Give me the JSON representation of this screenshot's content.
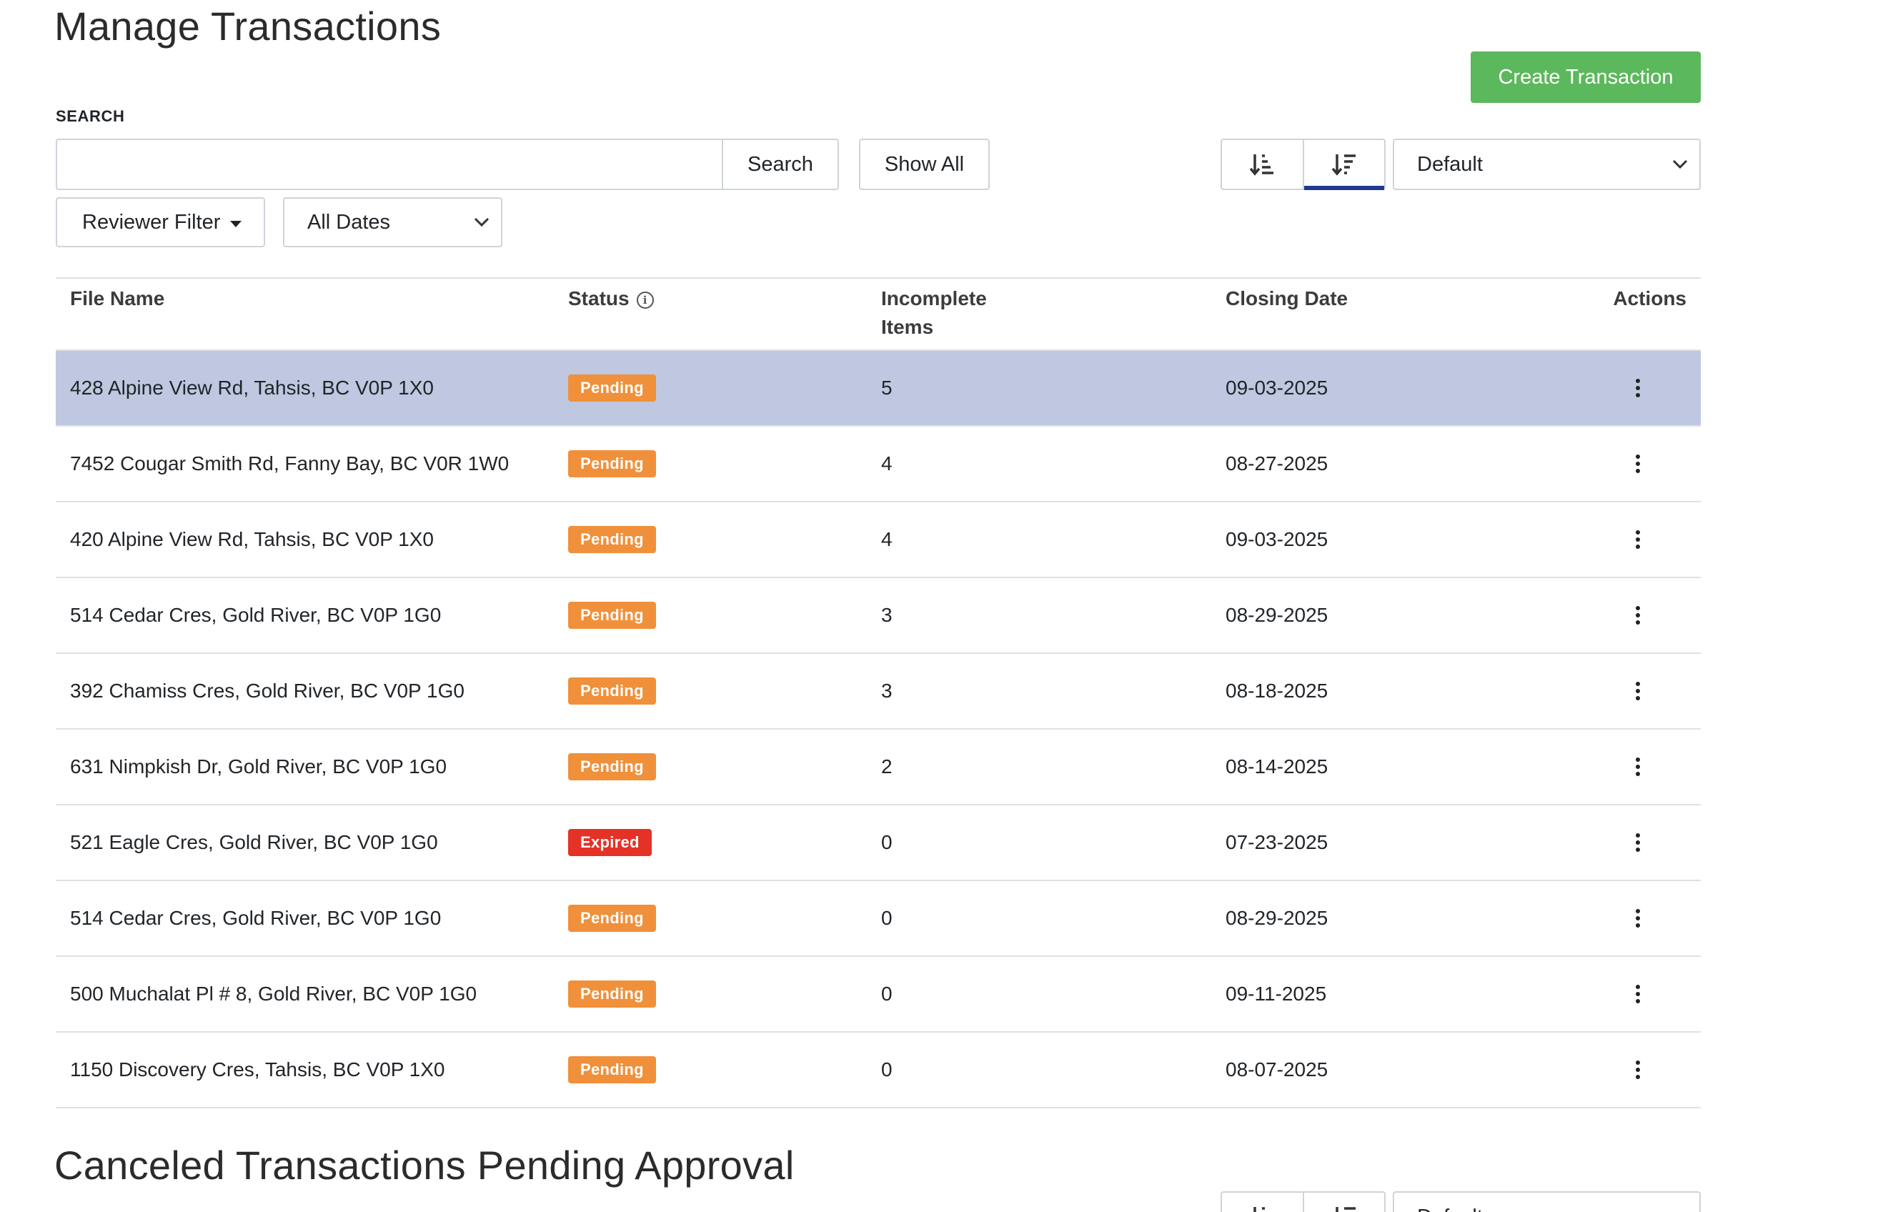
{
  "header": {
    "title": "Manage Transactions",
    "create_button": "Create Transaction"
  },
  "search": {
    "label": "SEARCH",
    "value": "",
    "placeholder": "",
    "search_button": "Search",
    "show_all_button": "Show All"
  },
  "sort": {
    "ascending_icon": "sort-ascending-icon",
    "descending_icon": "sort-descending-icon",
    "active": "descending",
    "select_value": "Default"
  },
  "filters": {
    "reviewer_filter": "Reviewer Filter",
    "dates_select": "All Dates"
  },
  "table": {
    "columns": {
      "file_name": "File Name",
      "status": "Status",
      "incomplete_line1": "Incomplete",
      "incomplete_line2": "Items",
      "closing_date": "Closing Date",
      "actions": "Actions"
    },
    "rows": [
      {
        "file": "428 Alpine View Rd, Tahsis, BC V0P 1X0",
        "status": "Pending",
        "items": "5",
        "date": "09-03-2025",
        "selected": true
      },
      {
        "file": "7452 Cougar Smith Rd, Fanny Bay, BC V0R 1W0",
        "status": "Pending",
        "items": "4",
        "date": "08-27-2025"
      },
      {
        "file": "420 Alpine View Rd, Tahsis, BC V0P 1X0",
        "status": "Pending",
        "items": "4",
        "date": "09-03-2025"
      },
      {
        "file": "514 Cedar Cres, Gold River, BC V0P 1G0",
        "status": "Pending",
        "items": "3",
        "date": "08-29-2025"
      },
      {
        "file": "392 Chamiss Cres, Gold River, BC V0P 1G0",
        "status": "Pending",
        "items": "3",
        "date": "08-18-2025"
      },
      {
        "file": "631 Nimpkish Dr, Gold River, BC V0P 1G0",
        "status": "Pending",
        "items": "2",
        "date": "08-14-2025"
      },
      {
        "file": "521 Eagle Cres, Gold River, BC V0P 1G0",
        "status": "Expired",
        "items": "0",
        "date": "07-23-2025"
      },
      {
        "file": "514 Cedar Cres, Gold River, BC V0P 1G0",
        "status": "Pending",
        "items": "0",
        "date": "08-29-2025"
      },
      {
        "file": "500 Muchalat Pl # 8, Gold River, BC V0P 1G0",
        "status": "Pending",
        "items": "0",
        "date": "09-11-2025"
      },
      {
        "file": "1150 Discovery Cres, Tahsis, BC V0P 1X0",
        "status": "Pending",
        "items": "0",
        "date": "08-07-2025"
      }
    ]
  },
  "canceled_section": {
    "title": "Canceled Transactions Pending Approval",
    "select_value": "Default"
  },
  "colors": {
    "create_button": "#5cb85c",
    "pending_badge": "#f0903a",
    "expired_badge": "#e53227",
    "selected_row": "#bfc8e0",
    "active_sort_underline": "#1f3a8a"
  }
}
